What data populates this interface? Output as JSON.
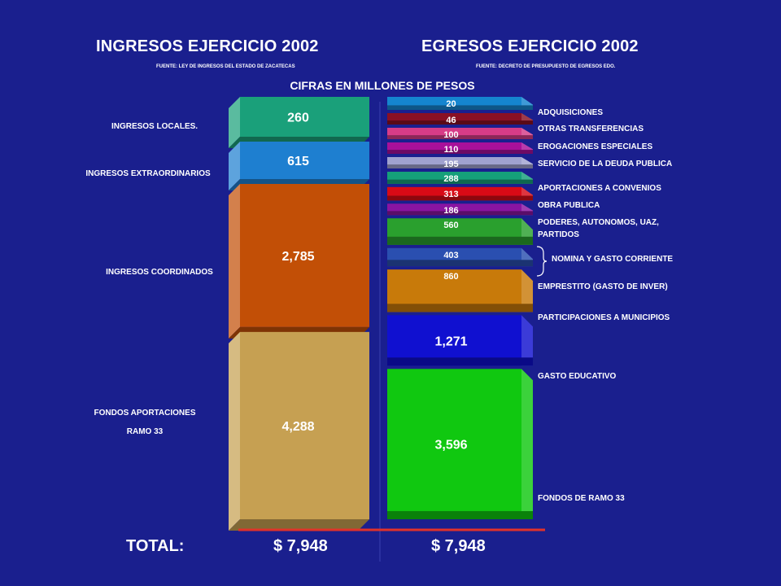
{
  "header": {
    "left_title": "INGRESOS EJERCICIO 2002",
    "left_source": "FUENTE: LEY DE INGRESOS DEL ESTADO DE ZACATECAS",
    "right_title": "EGRESOS EJERCICIO 2002",
    "right_source": "FUENTE: DECRETO DE PRESUPUESTO DE EGRESOS EDO.",
    "subtitle": "CIFRAS EN MILLONES DE PESOS"
  },
  "totals": {
    "label": "TOTAL:",
    "ingresos": "$ 7,948",
    "egresos": "$ 7,948"
  },
  "colors": {
    "background": "#1a1f8e",
    "total_line": "#e0322a",
    "ingresos": [
      "#1aa07a",
      "#1e7fd0",
      "#c24f06",
      "#c6a052"
    ],
    "egresos": [
      "#1585cf",
      "#8a1024",
      "#d63c87",
      "#a8109a",
      "#a0a2cf",
      "#15a07a",
      "#d80a16",
      "#8a14a2",
      "#2aa02e",
      "#2a4fb0",
      "#c87a0a",
      "#1010d0",
      "#10c810"
    ]
  },
  "chart_data": {
    "type": "bar",
    "stacked": true,
    "unit": "millones de pesos",
    "series": [
      {
        "name": "INGRESOS EJERCICIO 2002",
        "categories": [
          "INGRESOS LOCALES.",
          "INGRESOS EXTRAORDINARIOS",
          "INGRESOS COORDINADOS",
          "FONDOS APORTACIONES RAMO 33"
        ],
        "label_lines": [
          [
            "INGRESOS LOCALES."
          ],
          [
            "INGRESOS EXTRAORDINARIOS"
          ],
          [
            "INGRESOS COORDINADOS"
          ],
          [
            "FONDOS APORTACIONES",
            "RAMO 33"
          ]
        ],
        "values": [
          260,
          615,
          2785,
          4288
        ],
        "value_labels": [
          "260",
          "615",
          "2,785",
          "4,288"
        ]
      },
      {
        "name": "EGRESOS EJERCICIO 2002",
        "categories": [
          "ADQUISICIONES",
          "OTRAS TRANSFERENCIAS",
          "EROGACIONES ESPECIALES",
          "SERVICIO DE LA DEUDA PUBLICA",
          "APORTACIONES A CONVENIOS",
          "OBRA PUBLICA",
          "PODERES, AUTONOMOS, UAZ, PARTIDOS",
          "",
          "",
          "EMPRESTITO (GASTO DE INVER)",
          "PARTICIPACIONES A MUNICIPIOS",
          "GASTO EDUCATIVO",
          "FONDOS DE RAMO 33"
        ],
        "values": [
          20,
          46,
          100,
          110,
          195,
          288,
          313,
          186,
          560,
          403,
          860,
          1271,
          3596
        ],
        "value_labels": [
          "20",
          "46",
          "100",
          "110",
          "195",
          "288",
          "313",
          "186",
          "560",
          "403",
          "860",
          "1,271",
          "3,596"
        ]
      }
    ],
    "egresos_text_labels": [
      {
        "lines": [
          "ADQUISICIONES"
        ]
      },
      {
        "lines": [
          "OTRAS TRANSFERENCIAS"
        ]
      },
      {
        "lines": [
          "EROGACIONES ESPECIALES"
        ]
      },
      {
        "lines": [
          "SERVICIO DE LA DEUDA PUBLICA"
        ]
      },
      {
        "lines": [
          "APORTACIONES A CONVENIOS"
        ]
      },
      {
        "lines": [
          "OBRA PUBLICA"
        ]
      },
      {
        "lines": [
          "PODERES, AUTONOMOS, UAZ,",
          "PARTIDOS"
        ]
      },
      {
        "lines": [
          "NOMINA Y GASTO CORRIENTE"
        ],
        "bracket": true
      },
      {
        "lines": [
          "EMPRESTITO (GASTO DE INVER)"
        ]
      },
      {
        "lines": [
          "PARTICIPACIONES A MUNICIPIOS"
        ]
      },
      {
        "lines": [
          "GASTO EDUCATIVO"
        ]
      },
      {
        "lines": [
          "FONDOS DE RAMO 33"
        ]
      }
    ],
    "total": 7948
  }
}
